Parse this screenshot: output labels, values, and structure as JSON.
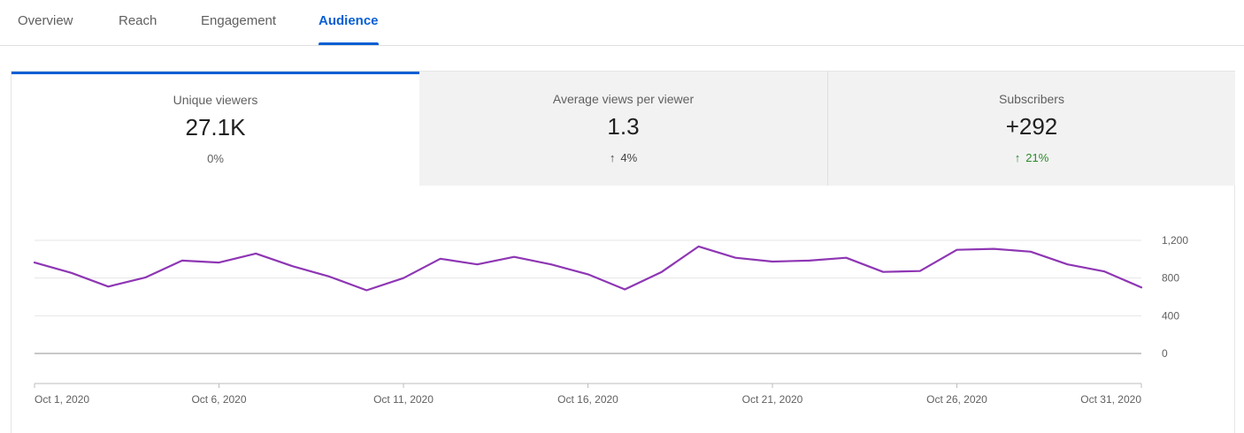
{
  "tabs": [
    {
      "label": "Overview",
      "active": false
    },
    {
      "label": "Reach",
      "active": false
    },
    {
      "label": "Engagement",
      "active": false
    },
    {
      "label": "Audience",
      "active": true
    }
  ],
  "metrics": [
    {
      "label": "Unique viewers",
      "value": "27.1K",
      "delta": "0%",
      "arrow": ""
    },
    {
      "label": "Average views per viewer",
      "value": "1.3",
      "delta": "4%",
      "arrow": "↑"
    },
    {
      "label": "Subscribers",
      "value": "+292",
      "delta": "21%",
      "arrow": "↑"
    }
  ],
  "colors": {
    "accent": "#065fd4",
    "series": "#8e36b4",
    "positive": "#2a8a2a"
  },
  "chart_data": {
    "type": "line",
    "title": "",
    "xlabel": "",
    "ylabel": "",
    "grid": true,
    "ylim": [
      0,
      1200
    ],
    "yticks": [
      {
        "value": 1200,
        "label": "1,200"
      },
      {
        "value": 800,
        "label": "800"
      },
      {
        "value": 400,
        "label": "400"
      },
      {
        "value": 0,
        "label": "0"
      }
    ],
    "xticks": [
      {
        "day": 1,
        "label": "Oct 1, 2020"
      },
      {
        "day": 6,
        "label": "Oct 6, 2020"
      },
      {
        "day": 11,
        "label": "Oct 11, 2020"
      },
      {
        "day": 16,
        "label": "Oct 16, 2020"
      },
      {
        "day": 21,
        "label": "Oct 21, 2020"
      },
      {
        "day": 26,
        "label": "Oct 26, 2020"
      },
      {
        "day": 31,
        "label": "Oct 31, 2020"
      }
    ],
    "series": [
      {
        "name": "",
        "x": [
          1,
          2,
          3,
          4,
          5,
          6,
          7,
          8,
          9,
          10,
          11,
          12,
          13,
          14,
          15,
          16,
          17,
          18,
          19,
          20,
          21,
          22,
          23,
          24,
          25,
          26,
          27,
          28,
          29,
          30,
          31
        ],
        "values": [
          965,
          855,
          710,
          805,
          985,
          965,
          1060,
          925,
          815,
          670,
          800,
          1005,
          945,
          1025,
          945,
          840,
          680,
          865,
          1135,
          1015,
          975,
          985,
          1015,
          865,
          875,
          1100,
          1110,
          1080,
          945,
          870,
          700
        ]
      }
    ]
  }
}
